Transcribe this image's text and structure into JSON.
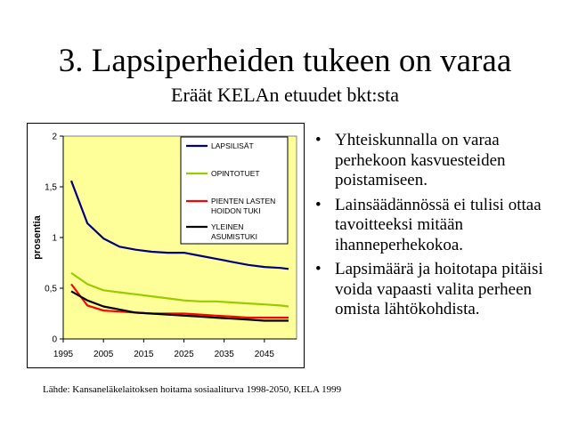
{
  "slide": {
    "title": "3. Lapsiperheiden tukeen on varaa",
    "subtitle": "Eräät KELAn etuudet bkt:sta",
    "bullets": [
      "Yhteiskunnalla on varaa perhekoon kasvuesteiden poistamiseen.",
      "Lainsäädännössä ei tulisi ottaa tavoitteeksi mitään ihanneperhekokoa.",
      "Lapsimäärä ja hoitotapa pitäisi voida vapaasti valita perheen omista lähtökohdista."
    ],
    "bullet_symbol": "•",
    "source": "Lähde: Kansaneläkelaitoksen hoitama sosiaaliturva 1998-2050, KELA 1999"
  },
  "chart_data": {
    "type": "line",
    "title": "",
    "xlabel": "",
    "ylabel": "prosentia",
    "xlim": [
      1995,
      2053
    ],
    "ylim": [
      0,
      2
    ],
    "x": [
      1997,
      2001,
      2005,
      2009,
      2013,
      2017,
      2021,
      2025,
      2029,
      2033,
      2037,
      2041,
      2045,
      2049,
      2051
    ],
    "x_ticks": [
      1995,
      2005,
      2015,
      2025,
      2035,
      2045
    ],
    "x_tick_labels": [
      "1995",
      "2005",
      "2015",
      "2025",
      "2035",
      "2045"
    ],
    "y_ticks": [
      0,
      0.5,
      1,
      1.5,
      2
    ],
    "y_tick_labels": [
      "0",
      "0,5",
      "1",
      "1,5",
      "2"
    ],
    "grid": false,
    "plot_background": "#ffff99",
    "legend_position": "top-right",
    "series": [
      {
        "name": "LAPSILISÄT",
        "color": "#000080",
        "values": [
          1.56,
          1.14,
          0.99,
          0.91,
          0.88,
          0.86,
          0.85,
          0.85,
          0.82,
          0.79,
          0.76,
          0.73,
          0.71,
          0.7,
          0.69
        ]
      },
      {
        "name": "OPINTOTUET",
        "color": "#99cc00",
        "values": [
          0.65,
          0.54,
          0.48,
          0.46,
          0.44,
          0.42,
          0.4,
          0.38,
          0.37,
          0.37,
          0.36,
          0.35,
          0.34,
          0.33,
          0.32
        ]
      },
      {
        "name": "PIENTEN LASTEN HOIDON TUKI",
        "color": "#ff0000",
        "values": [
          0.54,
          0.33,
          0.28,
          0.27,
          0.26,
          0.25,
          0.25,
          0.25,
          0.24,
          0.23,
          0.22,
          0.21,
          0.21,
          0.21,
          0.21
        ]
      },
      {
        "name": "YLEINEN ASUMISTUKI",
        "color": "#000000",
        "values": [
          0.47,
          0.38,
          0.32,
          0.29,
          0.26,
          0.25,
          0.24,
          0.23,
          0.22,
          0.21,
          0.2,
          0.19,
          0.18,
          0.18,
          0.18
        ]
      }
    ],
    "legend_lines": [
      [
        "LAPSILISÄT"
      ],
      [
        "OPINTOTUET"
      ],
      [
        "PIENTEN LASTEN",
        "HOIDON TUKI"
      ],
      [
        "YLEINEN",
        "ASUMISTUKI"
      ]
    ]
  }
}
